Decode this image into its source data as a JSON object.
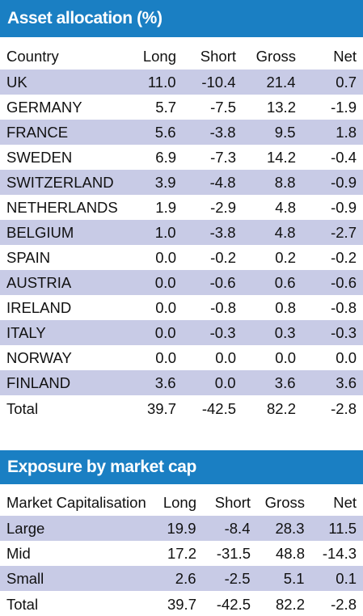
{
  "asset_allocation": {
    "title": "Asset allocation (%)",
    "columns": [
      "Country",
      "Long",
      "Short",
      "Gross",
      "Net"
    ],
    "rows": [
      [
        "UK",
        "11.0",
        "-10.4",
        "21.4",
        "0.7"
      ],
      [
        "GERMANY",
        "5.7",
        "-7.5",
        "13.2",
        "-1.9"
      ],
      [
        "FRANCE",
        "5.6",
        "-3.8",
        "9.5",
        "1.8"
      ],
      [
        "SWEDEN",
        "6.9",
        "-7.3",
        "14.2",
        "-0.4"
      ],
      [
        "SWITZERLAND",
        "3.9",
        "-4.8",
        "8.8",
        "-0.9"
      ],
      [
        "NETHERLANDS",
        "1.9",
        "-2.9",
        "4.8",
        "-0.9"
      ],
      [
        "BELGIUM",
        "1.0",
        "-3.8",
        "4.8",
        "-2.7"
      ],
      [
        "SPAIN",
        "0.0",
        "-0.2",
        "0.2",
        "-0.2"
      ],
      [
        "AUSTRIA",
        "0.0",
        "-0.6",
        "0.6",
        "-0.6"
      ],
      [
        "IRELAND",
        "0.0",
        "-0.8",
        "0.8",
        "-0.8"
      ],
      [
        "ITALY",
        "0.0",
        "-0.3",
        "0.3",
        "-0.3"
      ],
      [
        "NORWAY",
        "0.0",
        "0.0",
        "0.0",
        "0.0"
      ],
      [
        "FINLAND",
        "3.6",
        "0.0",
        "3.6",
        "3.6"
      ],
      [
        "Total",
        "39.7",
        "-42.5",
        "82.2",
        "-2.8"
      ]
    ],
    "shade_color": "#c8cbe6"
  },
  "market_cap": {
    "title": "Exposure by market cap",
    "columns": [
      "Market Capitalisation",
      "Long",
      "Short",
      "Gross",
      "Net"
    ],
    "rows": [
      [
        "Large",
        "19.9",
        "-8.4",
        "28.3",
        "11.5"
      ],
      [
        "Mid",
        "17.2",
        "-31.5",
        "48.8",
        "-14.3"
      ],
      [
        "Small",
        "2.6",
        "-2.5",
        "5.1",
        "0.1"
      ],
      [
        "Total",
        "39.7",
        "-42.5",
        "82.2",
        "-2.8"
      ]
    ]
  },
  "header_color": "#1a7fc3"
}
